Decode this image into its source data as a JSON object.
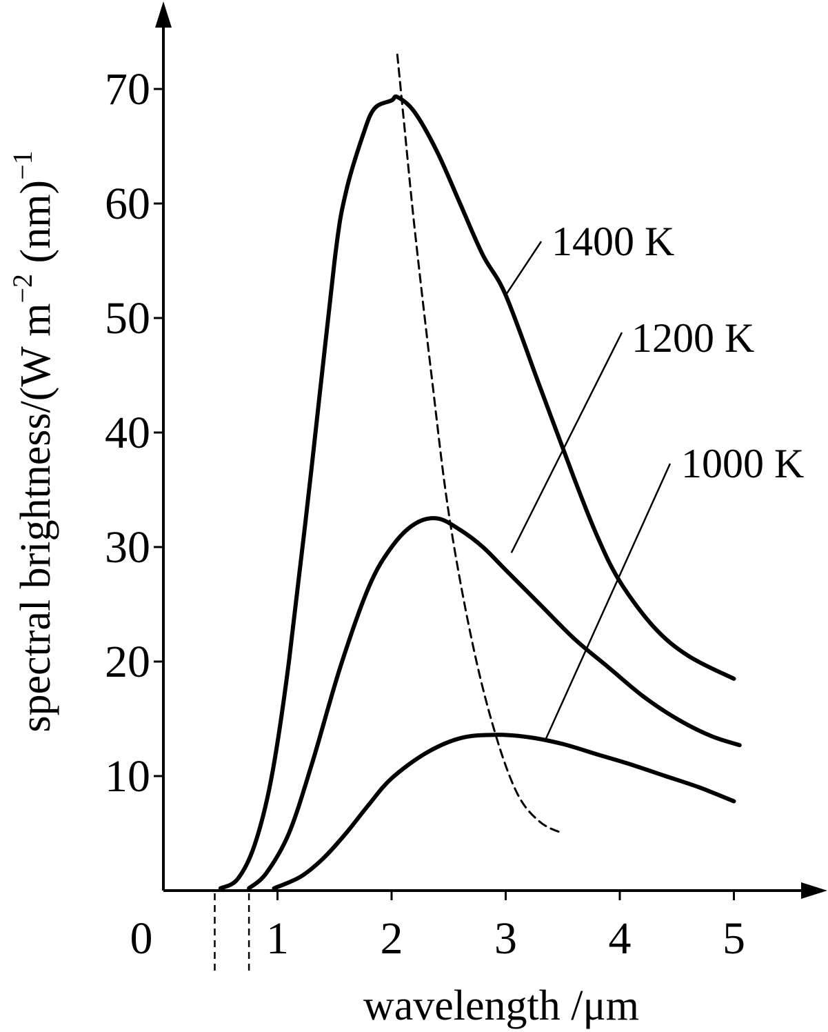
{
  "chart_data": {
    "type": "line",
    "title": "",
    "xlabel": "wavelength /μm",
    "ylabel": "spectral brightness/(W m",
    "ylabel_exp1": "−2",
    "ylabel_mid": " (nm)",
    "ylabel_exp2": "−1",
    "origin_label": "0",
    "xlim": [
      0,
      5.6
    ],
    "ylim": [
      0,
      75
    ],
    "x_ticks": [
      1,
      2,
      3,
      4,
      5
    ],
    "x_tick_labels": [
      "1",
      "2",
      "3",
      "4",
      "5"
    ],
    "y_ticks": [
      10,
      20,
      30,
      40,
      50,
      60,
      70
    ],
    "y_tick_labels": [
      "10",
      "20",
      "30",
      "40",
      "50",
      "60",
      "70"
    ],
    "grid": false,
    "series": [
      {
        "name": "1400 K",
        "x": [
          0.5,
          0.65,
          0.8,
          0.95,
          1.1,
          1.3,
          1.5,
          1.6,
          1.75,
          1.85,
          2.0,
          2.05,
          2.2,
          2.4,
          2.6,
          2.8,
          3.0,
          3.3,
          3.6,
          3.8,
          4.0,
          4.3,
          4.6,
          5.0
        ],
        "y": [
          0.2,
          1.0,
          4.0,
          10,
          20,
          37,
          55,
          61,
          66,
          68.3,
          69.0,
          69.3,
          68,
          64.5,
          60,
          55.5,
          52,
          44,
          36,
          31,
          27,
          23,
          20.5,
          18.5
        ]
      },
      {
        "name": "1200 K",
        "x": [
          0.75,
          0.9,
          1.1,
          1.3,
          1.55,
          1.8,
          2.0,
          2.2,
          2.4,
          2.6,
          2.8,
          3.0,
          3.3,
          3.6,
          3.9,
          4.2,
          4.5,
          4.8,
          5.05
        ],
        "y": [
          0.2,
          1.5,
          5,
          11,
          19.5,
          26.5,
          30,
          32,
          32.5,
          31.5,
          30,
          28,
          25,
          22,
          19.5,
          17,
          15,
          13.5,
          12.7
        ]
      },
      {
        "name": "1000 K",
        "x": [
          0.97,
          1.2,
          1.4,
          1.6,
          1.8,
          2.0,
          2.3,
          2.6,
          2.9,
          3.2,
          3.5,
          3.8,
          4.1,
          4.4,
          4.7,
          5.0
        ],
        "y": [
          0.2,
          1.2,
          2.8,
          5,
          7.5,
          9.8,
          12.0,
          13.3,
          13.6,
          13.4,
          12.8,
          11.9,
          11.0,
          10.0,
          9.0,
          7.8
        ]
      },
      {
        "name": "",
        "style": "dashed",
        "x": [
          2.05,
          2.1,
          2.2,
          2.35,
          2.5,
          2.7,
          2.9,
          3.1,
          3.3,
          3.5
        ],
        "y": [
          73,
          68,
          58,
          45,
          33,
          22,
          14,
          8.5,
          6,
          5
        ]
      }
    ],
    "curve_labels": [
      {
        "text": "1400 K",
        "series": "1400 K"
      },
      {
        "text": "1200 K",
        "series": "1200 K"
      },
      {
        "text": "1000 K",
        "series": "1000 K"
      }
    ],
    "cutoff_markers_x": [
      0.45,
      0.75
    ]
  }
}
